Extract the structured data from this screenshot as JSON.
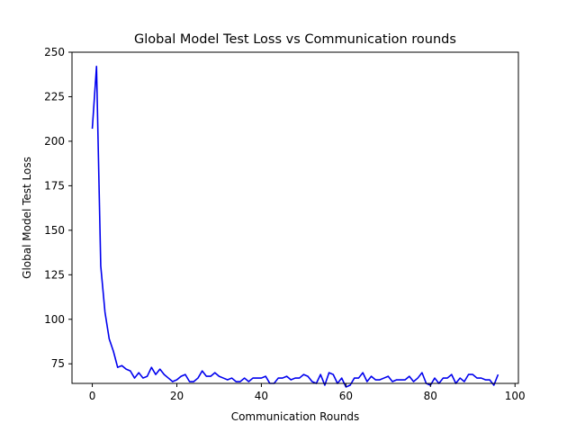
{
  "chart_data": {
    "type": "line",
    "title": "Global Model Test Loss vs Communication rounds",
    "xlabel": "Communication Rounds",
    "ylabel": "Global Model Test Loss",
    "xlim": [
      -4.8,
      100.8
    ],
    "ylim": [
      64,
      250
    ],
    "xticks": [
      0,
      20,
      40,
      60,
      80,
      100
    ],
    "yticks": [
      75,
      100,
      125,
      150,
      175,
      200,
      225,
      250
    ],
    "grid": false,
    "legend": "none",
    "series": [
      {
        "color": "#0000ee",
        "x": [
          0,
          1,
          2,
          3,
          4,
          5,
          6,
          7,
          8,
          9,
          10,
          11,
          12,
          13,
          14,
          15,
          16,
          17,
          18,
          19,
          20,
          21,
          22,
          23,
          24,
          25,
          26,
          27,
          28,
          29,
          30,
          31,
          32,
          33,
          34,
          35,
          36,
          37,
          38,
          39,
          40,
          41,
          42,
          43,
          44,
          45,
          46,
          47,
          48,
          49,
          50,
          51,
          52,
          53,
          54,
          55,
          56,
          57,
          58,
          59,
          60,
          61,
          62,
          63,
          64,
          65,
          66,
          67,
          68,
          69,
          70,
          71,
          72,
          73,
          74,
          75,
          76,
          77,
          78,
          79,
          80,
          81,
          82,
          83,
          84,
          85,
          86,
          87,
          88,
          89,
          90,
          91,
          92,
          93,
          94,
          95,
          96
        ],
        "y": [
          207,
          242,
          130,
          104,
          89,
          82,
          73,
          74,
          72,
          71,
          67,
          70,
          67,
          68,
          73,
          69,
          72,
          69,
          67,
          65,
          66,
          68,
          69,
          65,
          65,
          67,
          71,
          68,
          68,
          70,
          68,
          67,
          66,
          67,
          65,
          65,
          67,
          65,
          67,
          67,
          67,
          68,
          64,
          64,
          67,
          67,
          68,
          66,
          67,
          67,
          69,
          68,
          65,
          64,
          69,
          63,
          70,
          69,
          64,
          67,
          62,
          63,
          67,
          67,
          70,
          65,
          68,
          66,
          66,
          67,
          68,
          65,
          66,
          66,
          66,
          68,
          65,
          67,
          70,
          64,
          63,
          67,
          64,
          67,
          67,
          69,
          64,
          67,
          65,
          69,
          69,
          67,
          67,
          66,
          66,
          63,
          69
        ]
      }
    ]
  }
}
